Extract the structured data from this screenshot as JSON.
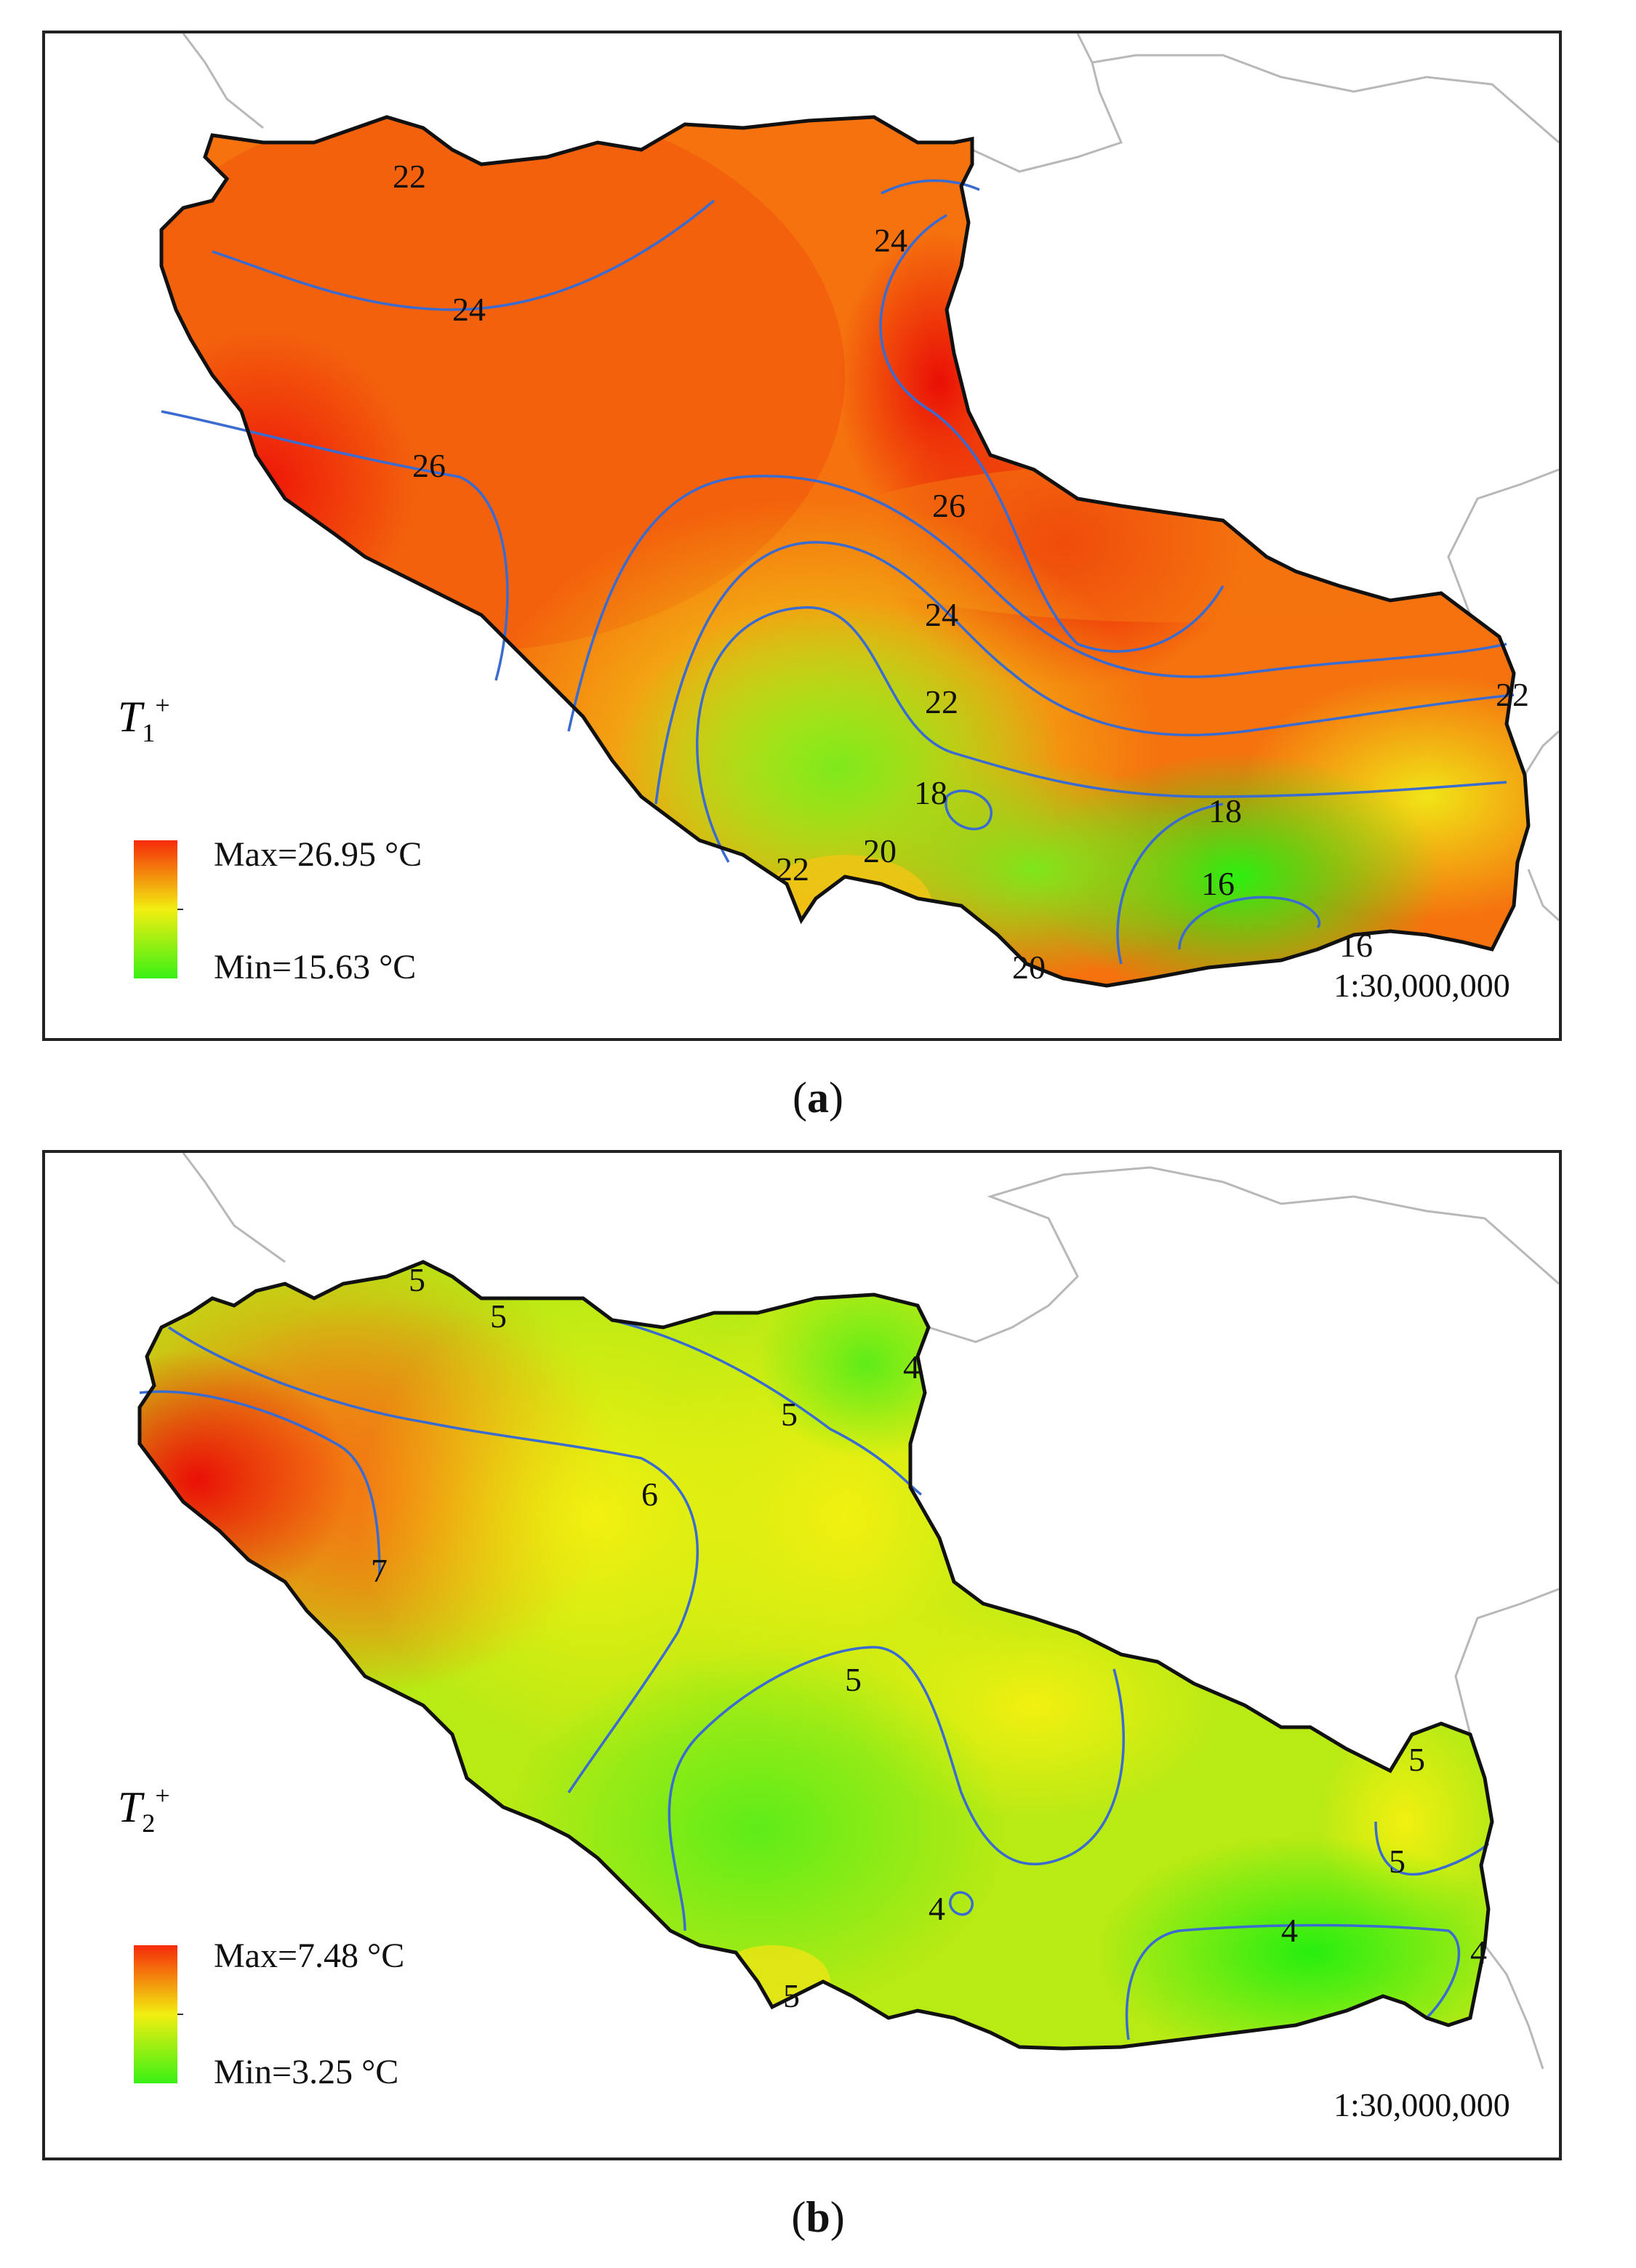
{
  "panels": [
    {
      "id": "a",
      "caption": "a",
      "param_base": "T",
      "param_sub": "1",
      "param_sup": "+",
      "legend_max": "Max=26.95 °C",
      "legend_min": "Min=15.63 °C",
      "scale": "1:30,000,000",
      "contour_labels": [
        "22",
        "24",
        "24",
        "26",
        "26",
        "24",
        "22",
        "22",
        "18",
        "20",
        "22",
        "18",
        "16",
        "16",
        "20"
      ],
      "colors": {
        "max": "#f52a0a",
        "mid": "#f2ee10",
        "min": "#3af014"
      }
    },
    {
      "id": "b",
      "caption": "b",
      "param_base": "T",
      "param_sub": "2",
      "param_sup": "+",
      "legend_max": "Max=7.48 °C",
      "legend_min": "Min=3.25 °C",
      "scale": "1:30,000,000",
      "contour_labels": [
        "5",
        "5",
        "4",
        "5",
        "6",
        "7",
        "5",
        "5",
        "5",
        "4",
        "4",
        "4",
        "5"
      ],
      "colors": {
        "max": "#f52a0a",
        "mid": "#f2ee10",
        "min": "#3af014"
      }
    }
  ]
}
